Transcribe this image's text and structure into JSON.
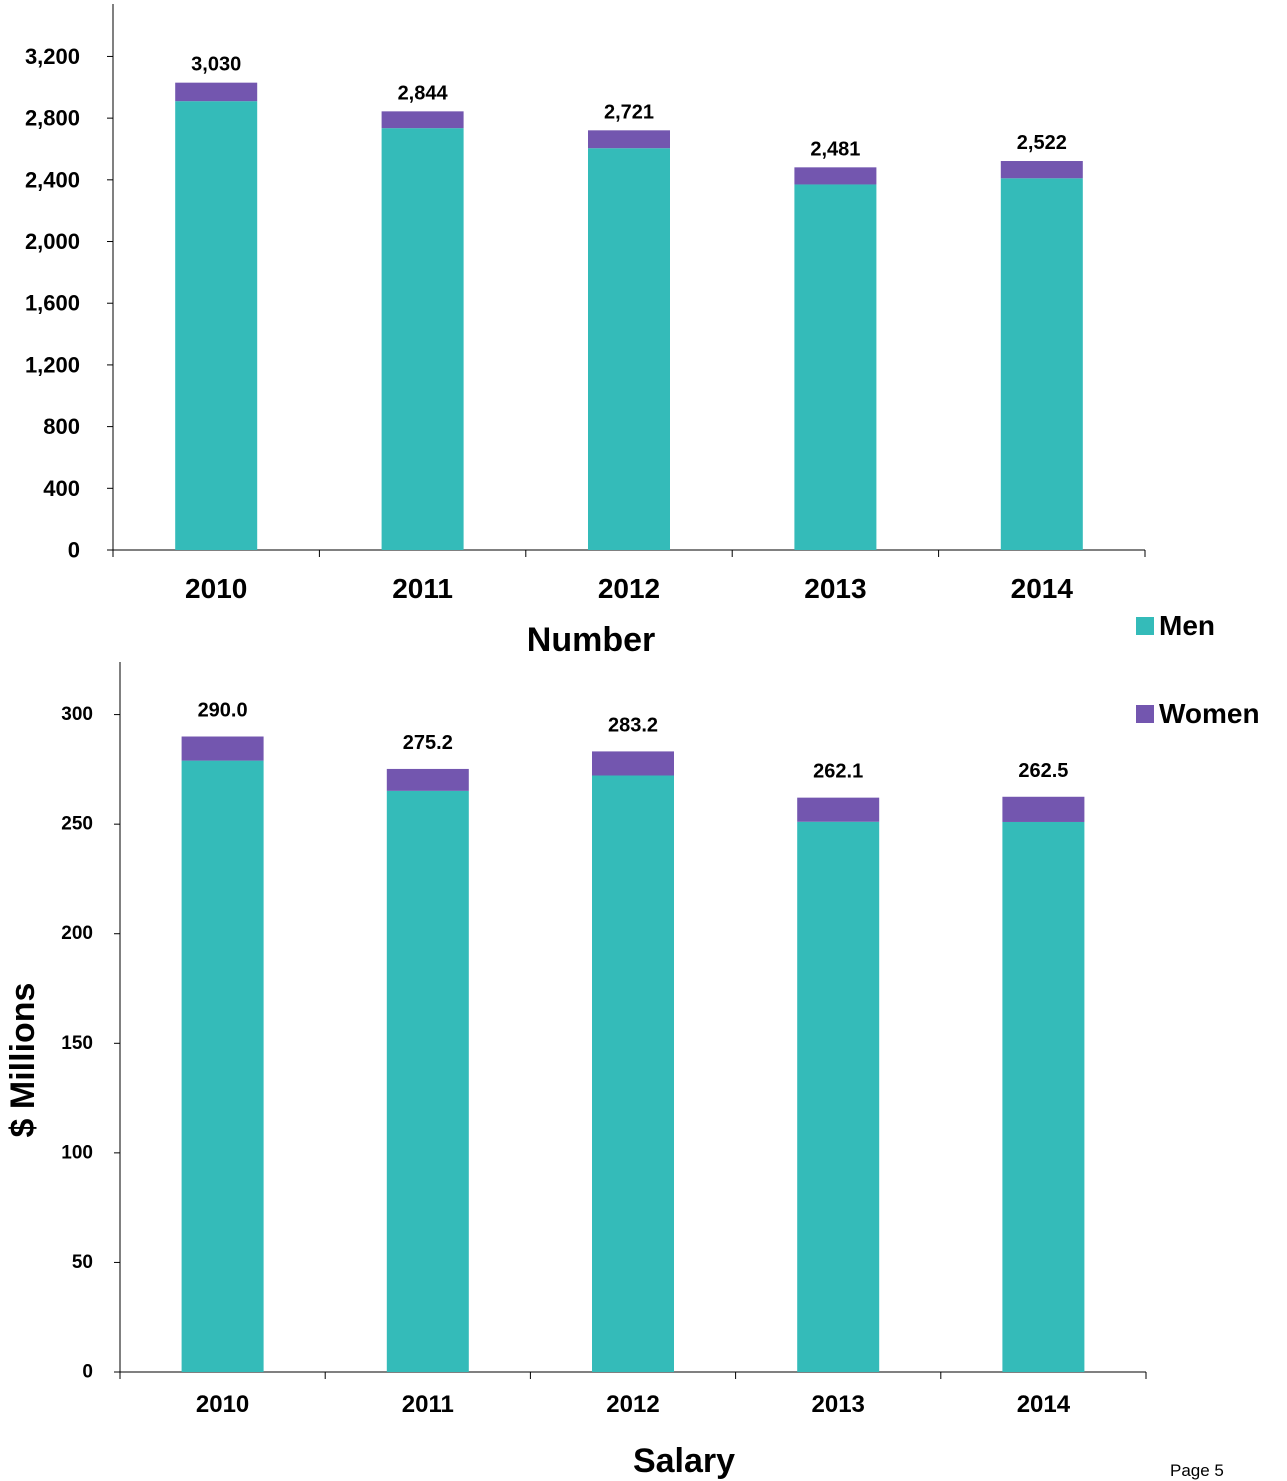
{
  "colors": {
    "men": "#34BBB9",
    "women": "#7356AF"
  },
  "legend": [
    {
      "label": "Men",
      "color": "#34BBB9"
    },
    {
      "label": "Women",
      "color": "#7356AF"
    }
  ],
  "page_label": "Page 5",
  "chart_data": [
    {
      "type": "bar",
      "stacked": true,
      "title": "",
      "xlabel": "Number",
      "ylabel": "",
      "categories": [
        "2010",
        "2011",
        "2012",
        "2013",
        "2014"
      ],
      "series": [
        {
          "name": "Men",
          "values": [
            2910,
            2735,
            2605,
            2370,
            2410
          ]
        },
        {
          "name": "Women",
          "values": [
            120,
            109,
            116,
            111,
            112
          ]
        }
      ],
      "totals": [
        "3,030",
        "2,844",
        "2,721",
        "2,481",
        "2,522"
      ],
      "ylim": [
        0,
        3540
      ],
      "yticks": [
        0,
        400,
        800,
        1200,
        1600,
        2000,
        2400,
        2800,
        3200
      ],
      "ytick_labels": [
        "0",
        "400",
        "800",
        "1,200",
        "1,600",
        "2,000",
        "2,400",
        "2,800",
        "3,200"
      ],
      "grid": false,
      "legend_position": "right"
    },
    {
      "type": "bar",
      "stacked": true,
      "title": "",
      "xlabel": "Salary",
      "ylabel": "$ Millions",
      "categories": [
        "2010",
        "2011",
        "2012",
        "2013",
        "2014"
      ],
      "series": [
        {
          "name": "Men",
          "values": [
            279.0,
            265.2,
            272.2,
            251.1,
            251.0
          ]
        },
        {
          "name": "Women",
          "values": [
            11.0,
            10.0,
            11.0,
            11.0,
            11.5
          ]
        }
      ],
      "totals": [
        "290.0",
        "275.2",
        "283.2",
        "262.1",
        "262.5"
      ],
      "ylim": [
        0,
        324
      ],
      "yticks": [
        0,
        50,
        100,
        150,
        200,
        250,
        300
      ],
      "ytick_labels": [
        "0",
        "50",
        "100",
        "150",
        "200",
        "250",
        "300"
      ],
      "grid": false,
      "legend_position": "right"
    }
  ]
}
